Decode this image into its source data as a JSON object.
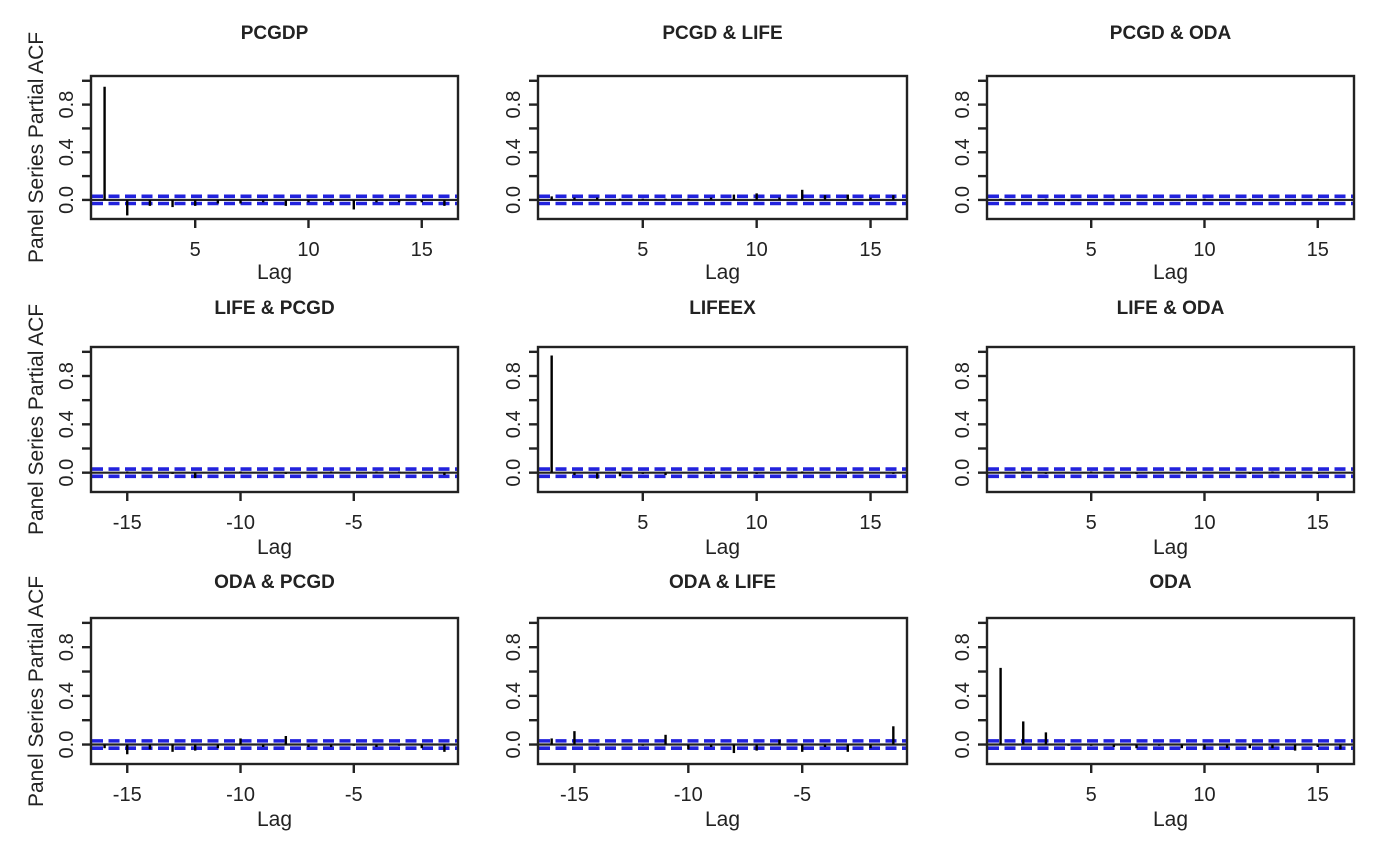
{
  "figure": {
    "background": "#ffffff",
    "axis_color": "#222222",
    "spike_color": "#000000",
    "ci_line_color": "#2222dd",
    "ylabel": "Panel Series Partial ACF",
    "xlabel": "Lag"
  },
  "chart_data": [
    {
      "type": "bar",
      "subtype": "pacf-spikes",
      "title": "PCGDP",
      "xlabel": "Lag",
      "ylabel": "Panel Series Partial ACF",
      "x": [
        1,
        2,
        3,
        4,
        5,
        6,
        7,
        8,
        9,
        10,
        11,
        12,
        13,
        14,
        15,
        16
      ],
      "values": [
        0.95,
        -0.13,
        -0.05,
        -0.06,
        -0.05,
        -0.03,
        -0.03,
        -0.02,
        -0.05,
        -0.02,
        -0.02,
        -0.08,
        -0.02,
        -0.02,
        -0.02,
        -0.05
      ],
      "xticks": [
        5,
        10,
        15
      ],
      "yticks": [
        0,
        0.2,
        0.4,
        0.6,
        0.8,
        1.0
      ],
      "ytick_label_values": [
        0,
        0.4,
        0.8
      ],
      "ytick_labels": [
        "0.0",
        "0.4",
        "0.8"
      ],
      "xlim": [
        0.4,
        16.6
      ],
      "ylim": [
        -0.16,
        1.04
      ],
      "conf_band": 0.03,
      "zero_line": 0,
      "grid": false
    },
    {
      "type": "bar",
      "subtype": "pacf-spikes",
      "title": "PCGD & LIFE",
      "xlabel": "Lag",
      "ylabel": "Panel Series Partial ACF",
      "x": [
        1,
        2,
        3,
        4,
        5,
        6,
        7,
        8,
        9,
        10,
        11,
        12,
        13,
        14,
        15,
        16
      ],
      "values": [
        0.03,
        0.02,
        0.02,
        0.01,
        0.01,
        0.01,
        0.01,
        0.02,
        0.045,
        0.055,
        0.02,
        0.085,
        0.04,
        0.045,
        0.02,
        0.04
      ],
      "xticks": [
        5,
        10,
        15
      ],
      "yticks": [
        0,
        0.2,
        0.4,
        0.6,
        0.8,
        1.0
      ],
      "ytick_label_values": [
        0,
        0.4,
        0.8
      ],
      "ytick_labels": [
        "0.0",
        "0.4",
        "0.8"
      ],
      "xlim": [
        0.4,
        16.6
      ],
      "ylim": [
        -0.16,
        1.04
      ],
      "conf_band": 0.03,
      "zero_line": 0,
      "grid": false
    },
    {
      "type": "bar",
      "subtype": "pacf-spikes",
      "title": "PCGD & ODA",
      "xlabel": "Lag",
      "ylabel": "Panel Series Partial ACF",
      "x": [
        1,
        2,
        3,
        4,
        5,
        6,
        7,
        8,
        9,
        10,
        11,
        12,
        13,
        14,
        15,
        16
      ],
      "values": [
        0.01,
        0,
        0.01,
        -0.01,
        0,
        0.01,
        0,
        0,
        -0.01,
        0.01,
        0,
        0.01,
        0,
        -0.01,
        0.01,
        0
      ],
      "xticks": [
        5,
        10,
        15
      ],
      "yticks": [
        0,
        0.2,
        0.4,
        0.6,
        0.8,
        1.0
      ],
      "ytick_label_values": [
        0,
        0.4,
        0.8
      ],
      "ytick_labels": [
        "0.0",
        "0.4",
        "0.8"
      ],
      "xlim": [
        0.4,
        16.6
      ],
      "ylim": [
        -0.16,
        1.04
      ],
      "conf_band": 0.03,
      "zero_line": 0,
      "grid": false
    },
    {
      "type": "bar",
      "subtype": "pacf-spikes",
      "title": "LIFE & PCGD",
      "xlabel": "Lag",
      "ylabel": "Panel Series Partial ACF",
      "x": [
        -16,
        -15,
        -14,
        -13,
        -12,
        -11,
        -10,
        -9,
        -8,
        -7,
        -6,
        -5,
        -4,
        -3,
        -2,
        -1
      ],
      "values": [
        0,
        0.01,
        0,
        -0.01,
        -0.045,
        0,
        0.01,
        0,
        -0.01,
        0,
        0.01,
        0,
        0.01,
        0.01,
        0,
        -0.02
      ],
      "xticks": [
        -15,
        -10,
        -5
      ],
      "yticks": [
        0,
        0.2,
        0.4,
        0.6,
        0.8,
        1.0
      ],
      "ytick_label_values": [
        0,
        0.4,
        0.8
      ],
      "ytick_labels": [
        "0.0",
        "0.4",
        "0.8"
      ],
      "xlim": [
        -16.6,
        -0.4
      ],
      "ylim": [
        -0.16,
        1.04
      ],
      "conf_band": 0.03,
      "zero_line": 0,
      "grid": false
    },
    {
      "type": "bar",
      "subtype": "pacf-spikes",
      "title": "LIFEEX",
      "xlabel": "Lag",
      "ylabel": "Panel Series Partial ACF",
      "x": [
        1,
        2,
        3,
        4,
        5,
        6,
        7,
        8,
        9,
        10,
        11,
        12,
        13,
        14,
        15,
        16
      ],
      "values": [
        0.97,
        -0.02,
        -0.05,
        -0.03,
        -0.01,
        -0.02,
        0,
        -0.01,
        0,
        -0.01,
        0,
        0.01,
        0,
        -0.01,
        0,
        -0.01
      ],
      "xticks": [
        5,
        10,
        15
      ],
      "yticks": [
        0,
        0.2,
        0.4,
        0.6,
        0.8,
        1.0
      ],
      "ytick_label_values": [
        0,
        0.4,
        0.8
      ],
      "ytick_labels": [
        "0.0",
        "0.4",
        "0.8"
      ],
      "xlim": [
        0.4,
        16.6
      ],
      "ylim": [
        -0.16,
        1.04
      ],
      "conf_band": 0.03,
      "zero_line": 0,
      "grid": false
    },
    {
      "type": "bar",
      "subtype": "pacf-spikes",
      "title": "LIFE & ODA",
      "xlabel": "Lag",
      "ylabel": "Panel Series Partial ACF",
      "x": [
        1,
        2,
        3,
        4,
        5,
        6,
        7,
        8,
        9,
        10,
        11,
        12,
        13,
        14,
        15,
        16
      ],
      "values": [
        0,
        0.01,
        -0.01,
        0,
        0.01,
        0,
        -0.01,
        0,
        0.01,
        0,
        0,
        -0.01,
        0.01,
        0,
        -0.01,
        0
      ],
      "xticks": [
        5,
        10,
        15
      ],
      "yticks": [
        0,
        0.2,
        0.4,
        0.6,
        0.8,
        1.0
      ],
      "ytick_label_values": [
        0,
        0.4,
        0.8
      ],
      "ytick_labels": [
        "0.0",
        "0.4",
        "0.8"
      ],
      "xlim": [
        0.4,
        16.6
      ],
      "ylim": [
        -0.16,
        1.04
      ],
      "conf_band": 0.03,
      "zero_line": 0,
      "grid": false
    },
    {
      "type": "bar",
      "subtype": "pacf-spikes",
      "title": "ODA & PCGD",
      "xlabel": "Lag",
      "ylabel": "Panel Series Partial ACF",
      "x": [
        -16,
        -15,
        -14,
        -13,
        -12,
        -11,
        -10,
        -9,
        -8,
        -7,
        -6,
        -5,
        -4,
        -3,
        -2,
        -1
      ],
      "values": [
        -0.03,
        -0.08,
        -0.04,
        -0.06,
        -0.05,
        -0.03,
        0.05,
        -0.02,
        0.07,
        -0.02,
        -0.02,
        -0.01,
        -0.02,
        -0.01,
        -0.03,
        -0.06
      ],
      "xticks": [
        -15,
        -10,
        -5
      ],
      "yticks": [
        0,
        0.2,
        0.4,
        0.6,
        0.8,
        1.0
      ],
      "ytick_label_values": [
        0,
        0.4,
        0.8
      ],
      "ytick_labels": [
        "0.0",
        "0.4",
        "0.8"
      ],
      "xlim": [
        -16.6,
        -0.4
      ],
      "ylim": [
        -0.16,
        1.04
      ],
      "conf_band": 0.03,
      "zero_line": 0,
      "grid": false
    },
    {
      "type": "bar",
      "subtype": "pacf-spikes",
      "title": "ODA & LIFE",
      "xlabel": "Lag",
      "ylabel": "Panel Series Partial ACF",
      "x": [
        -16,
        -15,
        -14,
        -13,
        -12,
        -11,
        -10,
        -9,
        -8,
        -7,
        -6,
        -5,
        -4,
        -3,
        -2,
        -1
      ],
      "values": [
        0.05,
        0.11,
        -0.01,
        0,
        -0.01,
        0.08,
        -0.04,
        -0.02,
        -0.07,
        -0.05,
        0.04,
        -0.06,
        -0.02,
        -0.06,
        -0.03,
        0.15
      ],
      "xticks": [
        -15,
        -10,
        -5
      ],
      "yticks": [
        0,
        0.2,
        0.4,
        0.6,
        0.8,
        1.0
      ],
      "ytick_label_values": [
        0,
        0.4,
        0.8
      ],
      "ytick_labels": [
        "0.0",
        "0.4",
        "0.8"
      ],
      "xlim": [
        -16.6,
        -0.4
      ],
      "ylim": [
        -0.16,
        1.04
      ],
      "conf_band": 0.03,
      "zero_line": 0,
      "grid": false
    },
    {
      "type": "bar",
      "subtype": "pacf-spikes",
      "title": "ODA",
      "xlabel": "Lag",
      "ylabel": "Panel Series Partial ACF",
      "x": [
        1,
        2,
        3,
        4,
        5,
        6,
        7,
        8,
        9,
        10,
        11,
        12,
        13,
        14,
        15,
        16
      ],
      "values": [
        0.63,
        0.19,
        0.1,
        -0.01,
        -0.01,
        -0.02,
        -0.03,
        -0.01,
        -0.03,
        -0.04,
        -0.03,
        -0.03,
        -0.03,
        -0.05,
        -0.02,
        -0.04
      ],
      "xticks": [
        5,
        10,
        15
      ],
      "yticks": [
        0,
        0.2,
        0.4,
        0.6,
        0.8,
        1.0
      ],
      "ytick_label_values": [
        0,
        0.4,
        0.8
      ],
      "ytick_labels": [
        "0.0",
        "0.4",
        "0.8"
      ],
      "xlim": [
        0.4,
        16.6
      ],
      "ylim": [
        -0.16,
        1.04
      ],
      "conf_band": 0.03,
      "zero_line": 0,
      "grid": false
    }
  ]
}
